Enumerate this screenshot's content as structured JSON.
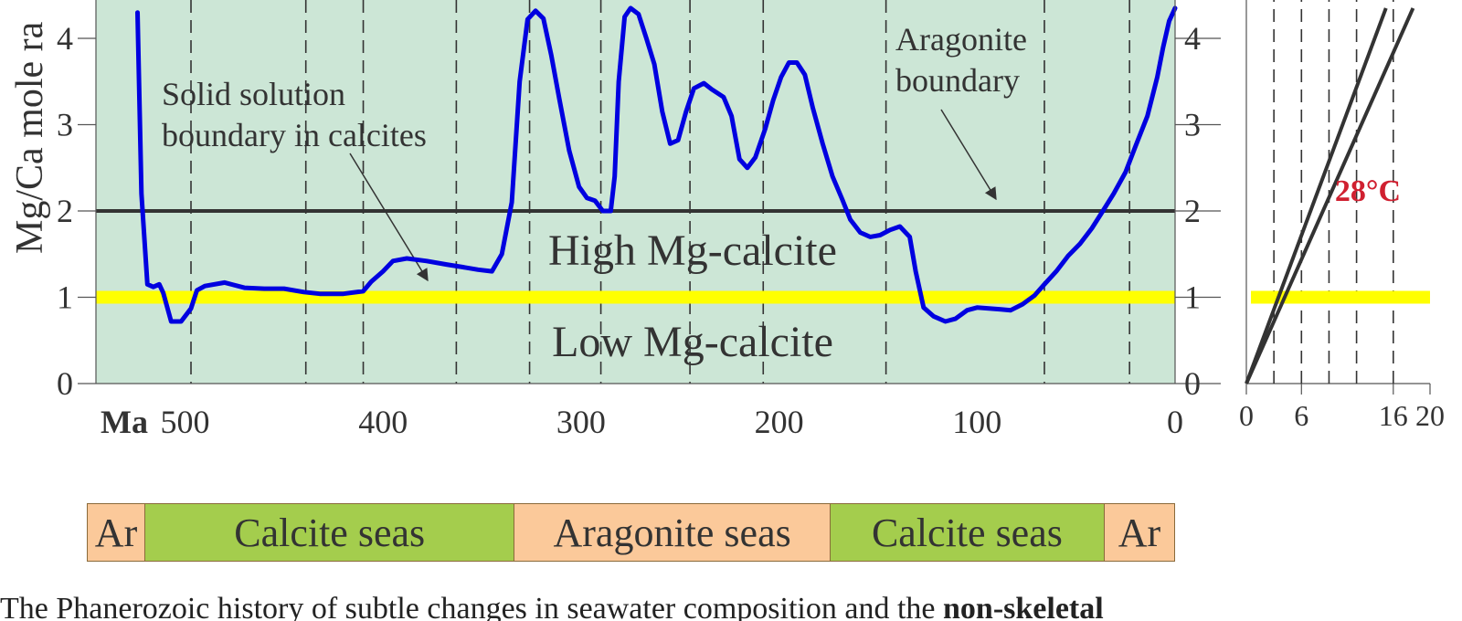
{
  "chart_data": [
    {
      "type": "line",
      "ylabel": "Mg/Ca mole ra",
      "x_unit_label": "Ma",
      "xlim": [
        545,
        0
      ],
      "ylim": [
        0,
        4.3
      ],
      "x_ticks": [
        500,
        400,
        300,
        200,
        100,
        0
      ],
      "y_ticks": [
        0,
        1,
        2,
        3,
        4
      ],
      "colors": {
        "background": "#cce6d6",
        "curve": "#0000e0",
        "aragonite_boundary": "#333333",
        "solid_solution_boundary": "#ffff00"
      },
      "vertical_dashed_lines": [
        497,
        439,
        410,
        363,
        326,
        290,
        245,
        208,
        146,
        66,
        23
      ],
      "series": [
        {
          "x": [
            524,
            522,
            519,
            516,
            513,
            511,
            507,
            502,
            497,
            494,
            490,
            480,
            470,
            460,
            450,
            440,
            432,
            420,
            410,
            406,
            400,
            395,
            388,
            378,
            368,
            360,
            352,
            345,
            340,
            335,
            331,
            327,
            323,
            319,
            315,
            311,
            306,
            301,
            297,
            293,
            289,
            287,
            285,
            283,
            281,
            278,
            275,
            271,
            267,
            263,
            259,
            255,
            251,
            247,
            243,
            238,
            234,
            228,
            224,
            220,
            216,
            212,
            207,
            203,
            199,
            195,
            191,
            187,
            183,
            178,
            173,
            168,
            164,
            159,
            154,
            149,
            144,
            139,
            134,
            131,
            127,
            122,
            116,
            111,
            105,
            100,
            94,
            88,
            83,
            77,
            71,
            66,
            60,
            54,
            48,
            42,
            37,
            31,
            25,
            20,
            14,
            9,
            6,
            3,
            0
          ],
          "y": [
            4.3,
            2.2,
            1.15,
            1.12,
            1.15,
            1.05,
            0.72,
            0.72,
            0.87,
            1.08,
            1.13,
            1.17,
            1.11,
            1.1,
            1.1,
            1.06,
            1.04,
            1.04,
            1.07,
            1.18,
            1.3,
            1.42,
            1.45,
            1.42,
            1.38,
            1.35,
            1.32,
            1.3,
            1.5,
            2.1,
            3.5,
            4.22,
            4.32,
            4.23,
            3.8,
            3.3,
            2.7,
            2.28,
            2.15,
            2.12,
            2.0,
            2.0,
            2.0,
            2.4,
            3.5,
            4.25,
            4.35,
            4.28,
            4.0,
            3.7,
            3.15,
            2.78,
            2.82,
            3.15,
            3.42,
            3.48,
            3.41,
            3.32,
            3.1,
            2.6,
            2.5,
            2.62,
            2.95,
            3.28,
            3.55,
            3.72,
            3.72,
            3.58,
            3.2,
            2.78,
            2.4,
            2.13,
            1.9,
            1.75,
            1.7,
            1.72,
            1.78,
            1.82,
            1.7,
            1.3,
            0.88,
            0.78,
            0.72,
            0.75,
            0.85,
            0.88,
            0.87,
            0.86,
            0.85,
            0.92,
            1.02,
            1.15,
            1.3,
            1.48,
            1.62,
            1.8,
            1.98,
            2.2,
            2.45,
            2.75,
            3.1,
            3.55,
            3.9,
            4.2,
            4.35
          ]
        }
      ],
      "boundaries": [
        {
          "name": "aragonite_boundary",
          "y": 2.0
        },
        {
          "name": "solid_solution_boundary",
          "y": 1.0
        }
      ],
      "annotations": {
        "solid_solution": "Solid solution\nboundary in calcites",
        "aragonite": "Aragonite\nboundary",
        "high": "High Mg-calcite",
        "low": "Low Mg-calcite"
      }
    },
    {
      "type": "line",
      "xlim": [
        0,
        20
      ],
      "ylim": [
        0,
        4.3
      ],
      "x_ticks": [
        0,
        6,
        16,
        20
      ],
      "y_ticks": [
        0,
        1,
        2,
        3,
        4
      ],
      "vertical_dashed_lines": [
        3,
        6,
        9,
        12,
        16
      ],
      "series": [
        {
          "x": [
            0,
            18.15
          ],
          "y": [
            0,
            4.35
          ]
        },
        {
          "x": [
            0,
            15.2
          ],
          "y": [
            0,
            4.35
          ]
        }
      ],
      "boundaries": [
        {
          "name": "solid_solution_boundary",
          "y": 1.0
        }
      ],
      "annotations": {
        "temp": "28°C"
      },
      "colors": {
        "temp_label": "#d02030",
        "lines": "#333333"
      }
    }
  ],
  "sea_bar": [
    {
      "label": "Ar",
      "from": 545,
      "to": 516,
      "color": "#fbc99a"
    },
    {
      "label": "Calcite seas",
      "from": 516,
      "to": 330,
      "color": "#a4cd4d"
    },
    {
      "label": "Aragonite seas",
      "from": 330,
      "to": 171,
      "color": "#fbc99a"
    },
    {
      "label": "Calcite seas",
      "from": 171,
      "to": 33,
      "color": "#a4cd4d"
    },
    {
      "label": "Ar",
      "from": 33,
      "to": -2,
      "color": "#fbc99a"
    }
  ],
  "caption": {
    "text_before": "The Phanerozoic history of subtle changes in seawater composition and the ",
    "text_bold": "non-skeletal"
  }
}
